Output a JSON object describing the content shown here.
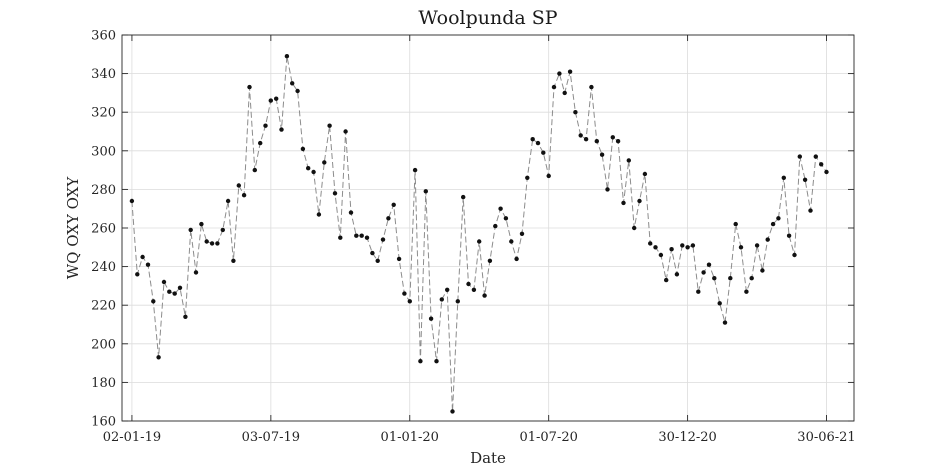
{
  "chart_data": {
    "type": "line",
    "title": "Woolpunda SP",
    "xlabel": "Date",
    "ylabel": "WQ OXY OXY",
    "ylim": [
      160,
      360
    ],
    "yticks": [
      160,
      180,
      200,
      220,
      240,
      260,
      280,
      300,
      320,
      340,
      360
    ],
    "xlim": [
      "2018-12-20",
      "2021-08-05"
    ],
    "xticks": [
      {
        "date": "2019-01-02",
        "label": "02-01-19"
      },
      {
        "date": "2019-07-03",
        "label": "03-07-19"
      },
      {
        "date": "2020-01-01",
        "label": "01-01-20"
      },
      {
        "date": "2020-07-01",
        "label": "01-07-20"
      },
      {
        "date": "2020-12-30",
        "label": "30-12-20"
      },
      {
        "date": "2021-06-30",
        "label": "30-06-21"
      }
    ],
    "grid": true,
    "series": [
      {
        "points": [
          [
            "2019-01-02",
            274
          ],
          [
            "2019-01-09",
            236
          ],
          [
            "2019-01-16",
            245
          ],
          [
            "2019-01-23",
            241
          ],
          [
            "2019-01-30",
            222
          ],
          [
            "2019-02-06",
            193
          ],
          [
            "2019-02-13",
            232
          ],
          [
            "2019-02-20",
            227
          ],
          [
            "2019-02-27",
            226
          ],
          [
            "2019-03-06",
            229
          ],
          [
            "2019-03-13",
            214
          ],
          [
            "2019-03-20",
            259
          ],
          [
            "2019-03-27",
            237
          ],
          [
            "2019-04-03",
            262
          ],
          [
            "2019-04-10",
            253
          ],
          [
            "2019-04-17",
            252
          ],
          [
            "2019-04-24",
            252
          ],
          [
            "2019-05-01",
            259
          ],
          [
            "2019-05-08",
            274
          ],
          [
            "2019-05-15",
            243
          ],
          [
            "2019-05-22",
            282
          ],
          [
            "2019-05-29",
            277
          ],
          [
            "2019-06-05",
            333
          ],
          [
            "2019-06-12",
            290
          ],
          [
            "2019-06-19",
            304
          ],
          [
            "2019-06-26",
            313
          ],
          [
            "2019-07-03",
            326
          ],
          [
            "2019-07-10",
            327
          ],
          [
            "2019-07-17",
            311
          ],
          [
            "2019-07-24",
            349
          ],
          [
            "2019-07-31",
            335
          ],
          [
            "2019-08-07",
            331
          ],
          [
            "2019-08-14",
            301
          ],
          [
            "2019-08-21",
            291
          ],
          [
            "2019-08-28",
            289
          ],
          [
            "2019-09-04",
            267
          ],
          [
            "2019-09-11",
            294
          ],
          [
            "2019-09-18",
            313
          ],
          [
            "2019-09-25",
            278
          ],
          [
            "2019-10-02",
            255
          ],
          [
            "2019-10-09",
            310
          ],
          [
            "2019-10-16",
            268
          ],
          [
            "2019-10-23",
            256
          ],
          [
            "2019-10-30",
            256
          ],
          [
            "2019-11-06",
            255
          ],
          [
            "2019-11-13",
            247
          ],
          [
            "2019-11-20",
            243
          ],
          [
            "2019-11-27",
            254
          ],
          [
            "2019-12-04",
            265
          ],
          [
            "2019-12-11",
            272
          ],
          [
            "2019-12-18",
            244
          ],
          [
            "2019-12-25",
            226
          ],
          [
            "2020-01-01",
            222
          ],
          [
            "2020-01-08",
            290
          ],
          [
            "2020-01-15",
            191
          ],
          [
            "2020-01-22",
            279
          ],
          [
            "2020-01-29",
            213
          ],
          [
            "2020-02-05",
            191
          ],
          [
            "2020-02-12",
            223
          ],
          [
            "2020-02-19",
            228
          ],
          [
            "2020-02-26",
            165
          ],
          [
            "2020-03-04",
            222
          ],
          [
            "2020-03-11",
            276
          ],
          [
            "2020-03-18",
            231
          ],
          [
            "2020-03-25",
            228
          ],
          [
            "2020-04-01",
            253
          ],
          [
            "2020-04-08",
            225
          ],
          [
            "2020-04-15",
            243
          ],
          [
            "2020-04-22",
            261
          ],
          [
            "2020-04-29",
            270
          ],
          [
            "2020-05-06",
            265
          ],
          [
            "2020-05-13",
            253
          ],
          [
            "2020-05-20",
            244
          ],
          [
            "2020-05-27",
            257
          ],
          [
            "2020-06-03",
            286
          ],
          [
            "2020-06-10",
            306
          ],
          [
            "2020-06-17",
            304
          ],
          [
            "2020-06-24",
            299
          ],
          [
            "2020-07-01",
            287
          ],
          [
            "2020-07-08",
            333
          ],
          [
            "2020-07-15",
            340
          ],
          [
            "2020-07-22",
            330
          ],
          [
            "2020-07-29",
            341
          ],
          [
            "2020-08-05",
            320
          ],
          [
            "2020-08-12",
            308
          ],
          [
            "2020-08-19",
            306
          ],
          [
            "2020-08-26",
            333
          ],
          [
            "2020-09-02",
            305
          ],
          [
            "2020-09-09",
            298
          ],
          [
            "2020-09-16",
            280
          ],
          [
            "2020-09-23",
            307
          ],
          [
            "2020-09-30",
            305
          ],
          [
            "2020-10-07",
            273
          ],
          [
            "2020-10-14",
            295
          ],
          [
            "2020-10-21",
            260
          ],
          [
            "2020-10-28",
            274
          ],
          [
            "2020-11-04",
            288
          ],
          [
            "2020-11-11",
            252
          ],
          [
            "2020-11-18",
            250
          ],
          [
            "2020-11-25",
            246
          ],
          [
            "2020-12-02",
            233
          ],
          [
            "2020-12-09",
            249
          ],
          [
            "2020-12-16",
            236
          ],
          [
            "2020-12-23",
            251
          ],
          [
            "2020-12-30",
            250
          ],
          [
            "2021-01-06",
            251
          ],
          [
            "2021-01-13",
            227
          ],
          [
            "2021-01-20",
            237
          ],
          [
            "2021-01-27",
            241
          ],
          [
            "2021-02-03",
            234
          ],
          [
            "2021-02-10",
            221
          ],
          [
            "2021-02-17",
            211
          ],
          [
            "2021-02-24",
            234
          ],
          [
            "2021-03-03",
            262
          ],
          [
            "2021-03-10",
            250
          ],
          [
            "2021-03-17",
            227
          ],
          [
            "2021-03-24",
            234
          ],
          [
            "2021-03-31",
            251
          ],
          [
            "2021-04-07",
            238
          ],
          [
            "2021-04-14",
            254
          ],
          [
            "2021-04-21",
            262
          ],
          [
            "2021-04-28",
            265
          ],
          [
            "2021-05-05",
            286
          ],
          [
            "2021-05-12",
            256
          ],
          [
            "2021-05-19",
            246
          ],
          [
            "2021-05-26",
            297
          ],
          [
            "2021-06-02",
            285
          ],
          [
            "2021-06-09",
            269
          ],
          [
            "2021-06-16",
            297
          ],
          [
            "2021-06-23",
            293
          ],
          [
            "2021-06-30",
            289
          ]
        ]
      }
    ]
  }
}
